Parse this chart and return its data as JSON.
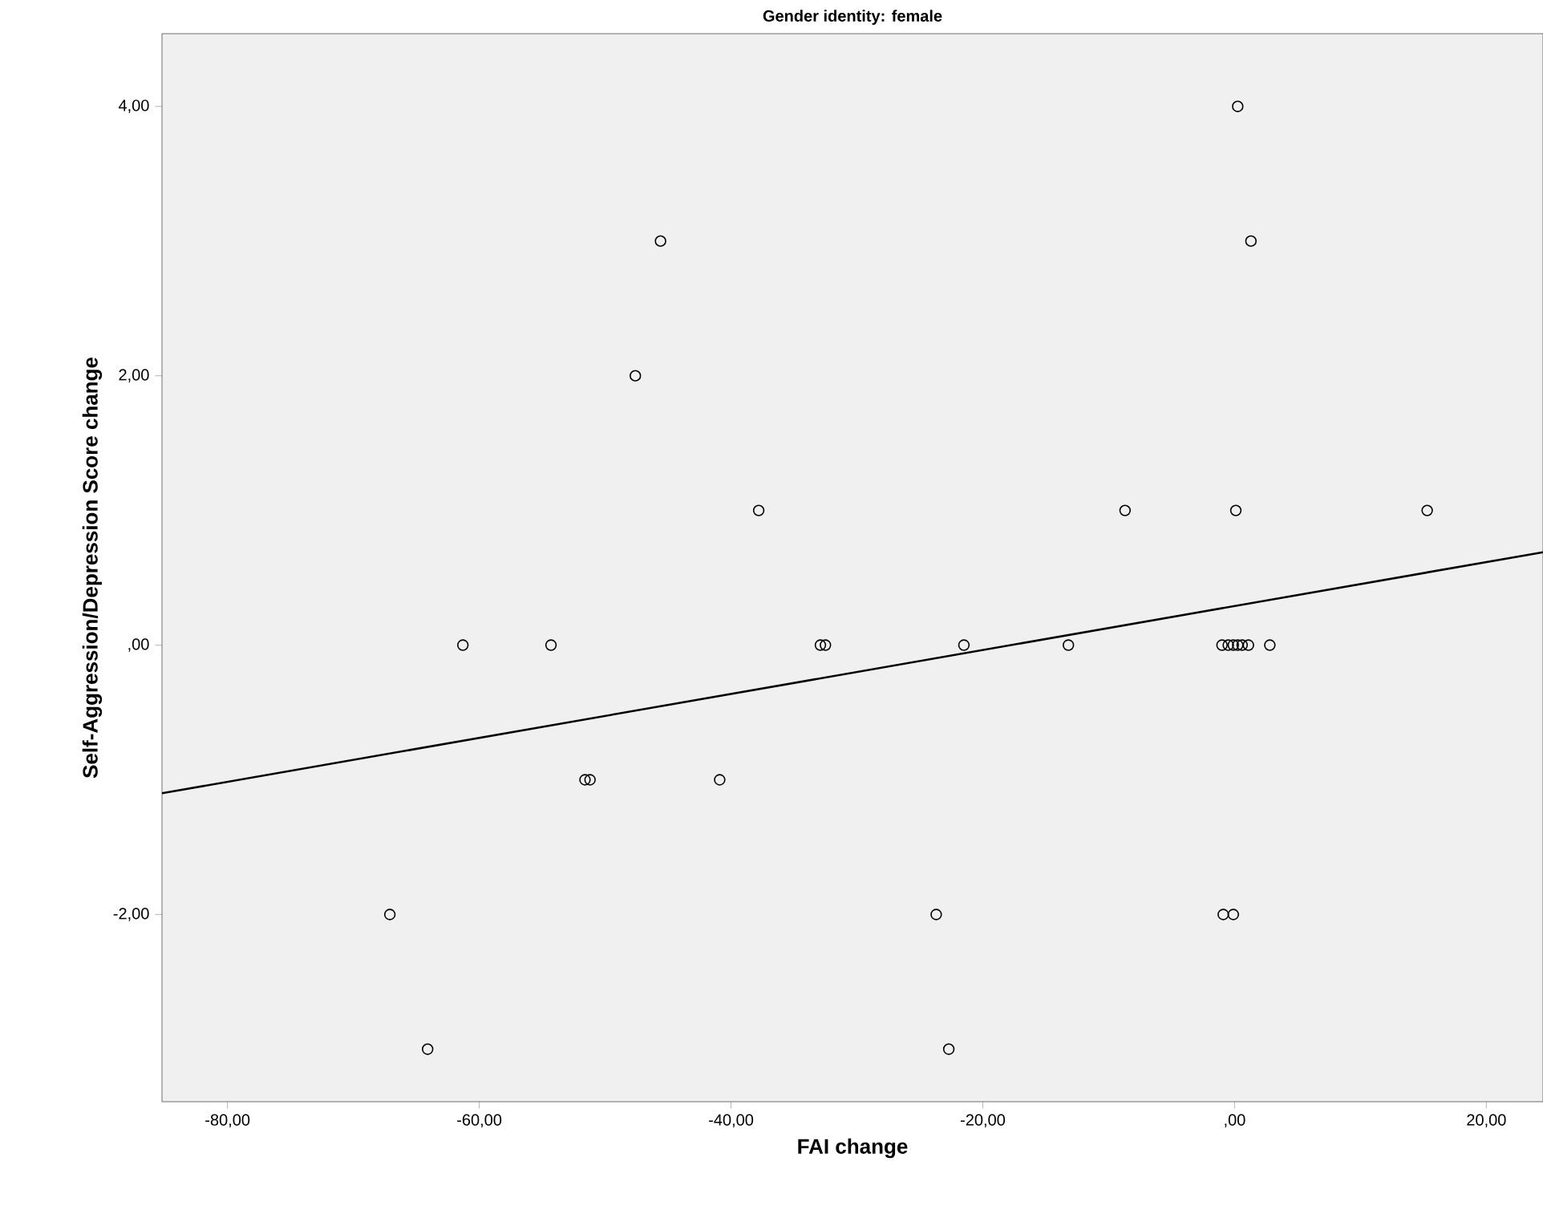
{
  "chart_data": {
    "type": "scatter",
    "title": "Gender identity: female",
    "xlabel": "FAI change",
    "ylabel": "Self-Aggression/Depression Score change",
    "xlim": [
      -85.2,
      24.5
    ],
    "ylim": [
      -3.39,
      4.54
    ],
    "xticks": [
      {
        "value": -80,
        "label": "-80,00"
      },
      {
        "value": -60,
        "label": "-60,00"
      },
      {
        "value": -40,
        "label": "-40,00"
      },
      {
        "value": -20,
        "label": "-20,00"
      },
      {
        "value": 0,
        "label": ",00"
      },
      {
        "value": 20,
        "label": "20,00"
      }
    ],
    "yticks": [
      {
        "value": -2,
        "label": "-2,00"
      },
      {
        "value": 0,
        "label": ",00"
      },
      {
        "value": 2,
        "label": "2,00"
      },
      {
        "value": 4,
        "label": "4,00"
      }
    ],
    "marker": "circle",
    "grid": false,
    "series": [
      {
        "color": "#000000",
        "x": [
          0.25,
          1.3,
          -45.6,
          -47.6,
          -37.8,
          -8.7,
          0.1,
          15.3,
          -61.3,
          -54.3,
          -32.9,
          -32.5,
          -21.5,
          -13.2,
          -1.0,
          -0.5,
          -0.1,
          0.25,
          0.6,
          1.1,
          2.8,
          -51.6,
          -51.2,
          -40.9,
          -67.1,
          -23.7,
          -0.9,
          -0.1,
          -64.1,
          -22.7
        ],
        "values": [
          4,
          3,
          3,
          2,
          1,
          1,
          1,
          1,
          0,
          0,
          0,
          0,
          0,
          0,
          0,
          0,
          0,
          0,
          0,
          0,
          0,
          -1,
          -1,
          -1,
          -2,
          -2,
          -2,
          -2,
          -3,
          -3
        ]
      },
      {
        "type": "line",
        "color": "#000000",
        "x": [
          -85.2,
          24.5
        ],
        "values": [
          -1.1,
          0.69
        ],
        "marker": "none",
        "line_style": "solid"
      }
    ]
  }
}
